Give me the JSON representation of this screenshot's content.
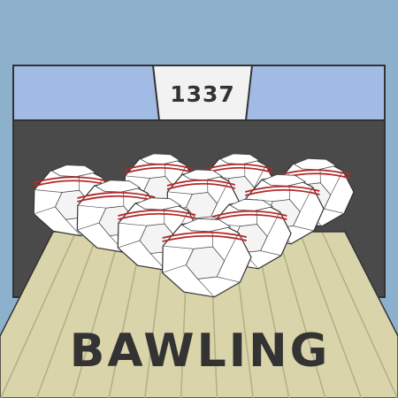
{
  "game": {
    "title": "BAWLING",
    "score": "1337"
  },
  "pins": {
    "standing": 10
  },
  "colors": {
    "sky": "#8db0cd",
    "header_band": "#a2bbe4",
    "pit": "#4a4a4a",
    "lane": "#d9d4a9",
    "lane_lines": "#b4ae86",
    "pin_face": "#ffffff",
    "pin_stripe": "#b22a2a",
    "text": "#333333"
  }
}
